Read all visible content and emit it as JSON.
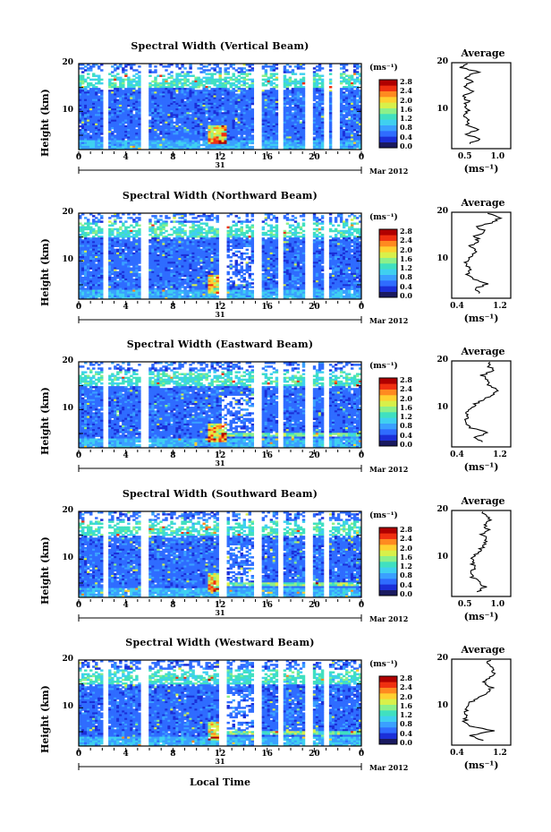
{
  "figure": {
    "xlabel": "Local Time",
    "month_label": "Mar 2012",
    "day_label": "31",
    "height_label": "Height (km)",
    "x_ticks": [
      "0",
      "4",
      "8",
      "12",
      "16",
      "20",
      "0"
    ],
    "y_ticks": [
      "20",
      "10"
    ],
    "colorbar_unit": "(ms⁻¹)",
    "colorbar_ticks": [
      "2.8",
      "2.4",
      "2.0",
      "1.6",
      "1.2",
      "0.8",
      "0.4",
      "0.0"
    ],
    "avg_title": "Average",
    "avg_xlabel": "(ms⁻¹)",
    "avg_yticks": [
      "20",
      "10"
    ]
  },
  "colors": {
    "colormap": [
      "#1a1a60",
      "#1b2fd8",
      "#2f6cff",
      "#3aa0ff",
      "#3fd0f0",
      "#40e0c0",
      "#8cf08a",
      "#d8f04a",
      "#ffd030",
      "#ff8a20",
      "#f03010",
      "#b00000"
    ]
  },
  "chart_data": [
    {
      "type": "heatmap",
      "title": "Spectral Width (Vertical Beam)",
      "xlabel": "Local Time",
      "ylabel": "Height (km)",
      "xlim": [
        0,
        24
      ],
      "ylim": [
        2,
        20
      ],
      "colorbar_range": [
        0.0,
        3.0
      ],
      "data_gaps_hours": [
        2.3,
        5.6,
        15.2,
        17.1,
        19.5,
        21.0,
        21.8
      ],
      "avg_profile": {
        "title": "Average",
        "xlabel": "(ms⁻¹)",
        "xticks": [
          "0.5",
          "1.0"
        ],
        "xlim": [
          0.3,
          1.2
        ],
        "height": [
          3,
          4,
          5,
          6,
          7,
          8,
          9,
          10,
          11,
          12,
          13,
          14,
          15,
          16,
          17,
          18,
          19,
          20
        ],
        "values": [
          0.55,
          0.75,
          0.5,
          0.7,
          0.52,
          0.55,
          0.5,
          0.55,
          0.5,
          0.55,
          0.48,
          0.62,
          0.5,
          0.6,
          0.5,
          0.7,
          0.45,
          0.55
        ]
      }
    },
    {
      "type": "heatmap",
      "title": "Spectral Width (Northward Beam)",
      "xlabel": "Local Time",
      "ylabel": "Height (km)",
      "xlim": [
        0,
        24
      ],
      "ylim": [
        2,
        20
      ],
      "colorbar_range": [
        0.0,
        3.0
      ],
      "data_gaps_hours": [
        2.3,
        5.6,
        12.2,
        15.2,
        17.1,
        19.5,
        21.0
      ],
      "avg_profile": {
        "title": "Average",
        "xlabel": "(ms⁻¹)",
        "xticks": [
          "0.4",
          "1.2"
        ],
        "xlim": [
          0.3,
          1.4
        ],
        "height": [
          3,
          4,
          5,
          6,
          7,
          8,
          9,
          10,
          11,
          12,
          13,
          14,
          15,
          16,
          17,
          18,
          19,
          20
        ],
        "values": [
          0.85,
          0.75,
          0.95,
          0.7,
          0.6,
          0.65,
          0.55,
          0.6,
          0.7,
          0.75,
          0.65,
          0.8,
          0.75,
          0.9,
          0.8,
          1.1,
          1.2,
          0.95
        ]
      }
    },
    {
      "type": "heatmap",
      "title": "Spectral Width (Eastward Beam)",
      "xlabel": "Local Time",
      "ylabel": "Height (km)",
      "xlim": [
        0,
        24
      ],
      "ylim": [
        2,
        20
      ],
      "colorbar_range": [
        0.0,
        3.0
      ],
      "data_gaps_hours": [
        2.3,
        5.6,
        15.2,
        17.1,
        19.5,
        21.0
      ],
      "avg_profile": {
        "title": "Average",
        "xlabel": "(ms⁻¹)",
        "xticks": [
          "0.4",
          "1.2"
        ],
        "xlim": [
          0.3,
          1.4
        ],
        "height": [
          3,
          4,
          5,
          6,
          7,
          8,
          9,
          10,
          11,
          12,
          13,
          14,
          15,
          16,
          17,
          18,
          19,
          20
        ],
        "values": [
          0.9,
          0.7,
          1.0,
          0.65,
          0.55,
          0.6,
          0.58,
          0.65,
          0.75,
          0.9,
          1.05,
          1.15,
          0.95,
          1.0,
          0.85,
          1.1,
          0.95,
          1.05
        ]
      }
    },
    {
      "type": "heatmap",
      "title": "Spectral Width (Southward Beam)",
      "xlabel": "Local Time",
      "ylabel": "Height (km)",
      "xlim": [
        0,
        24
      ],
      "ylim": [
        2,
        20
      ],
      "colorbar_range": [
        0.0,
        3.0
      ],
      "data_gaps_hours": [
        2.3,
        5.6,
        12.2,
        15.2,
        17.1,
        19.5,
        21.0
      ],
      "avg_profile": {
        "title": "Average",
        "xlabel": "(ms⁻¹)",
        "xticks": [
          "0.5",
          "1.0"
        ],
        "xlim": [
          0.3,
          1.2
        ],
        "height": [
          3,
          4,
          5,
          6,
          7,
          8,
          9,
          10,
          11,
          12,
          13,
          14,
          15,
          16,
          17,
          18,
          19,
          20
        ],
        "values": [
          0.7,
          0.8,
          0.75,
          0.62,
          0.6,
          0.65,
          0.62,
          0.6,
          0.7,
          0.75,
          0.8,
          0.85,
          0.75,
          0.85,
          0.8,
          0.9,
          0.8,
          0.75
        ]
      }
    },
    {
      "type": "heatmap",
      "title": "Spectral Width (Westward Beam)",
      "xlabel": "Local Time",
      "ylabel": "Height (km)",
      "xlim": [
        0,
        24
      ],
      "ylim": [
        2,
        20
      ],
      "colorbar_range": [
        0.0,
        3.0
      ],
      "data_gaps_hours": [
        2.3,
        5.6,
        12.2,
        15.2,
        17.1,
        19.5,
        21.0
      ],
      "avg_profile": {
        "title": "Average",
        "xlabel": "(ms⁻¹)",
        "xticks": [
          "0.4",
          "1.2"
        ],
        "xlim": [
          0.3,
          1.4
        ],
        "height": [
          3,
          4,
          5,
          6,
          7,
          8,
          9,
          10,
          11,
          12,
          13,
          14,
          15,
          16,
          17,
          18,
          19,
          20
        ],
        "values": [
          0.9,
          0.65,
          1.1,
          0.6,
          0.55,
          0.58,
          0.55,
          0.6,
          0.65,
          0.8,
          0.95,
          1.05,
          0.9,
          1.0,
          1.1,
          1.05,
          0.95,
          1.0
        ]
      }
    }
  ]
}
